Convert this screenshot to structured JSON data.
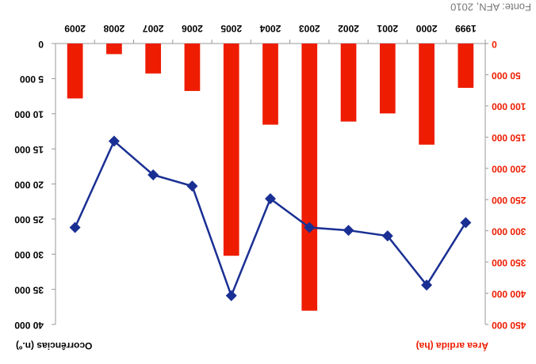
{
  "chart_data": {
    "type": "bar_line",
    "source": "Fonte: AFN, 2010",
    "y_label": "Área ardida (ha)",
    "y2_label": "Ocorrências (n.º)",
    "categories": [
      "1999",
      "2000",
      "2001",
      "2002",
      "2003",
      "2004",
      "2005",
      "2006",
      "2007",
      "2008",
      "2009"
    ],
    "series": [
      {
        "name": "Área ardida (ha)",
        "type": "bar",
        "color": "#ee1c00",
        "axis": "y",
        "values": [
          71000,
          162000,
          112000,
          125000,
          428000,
          130000,
          340000,
          76000,
          48000,
          17000,
          88000
        ]
      },
      {
        "name": "Ocorrências (n.º)",
        "type": "line",
        "color": "#1a2f93",
        "axis": "y2",
        "values": [
          25500,
          34400,
          27400,
          26600,
          26200,
          22100,
          35900,
          20300,
          18700,
          13900,
          26200
        ]
      }
    ],
    "ylim": [
      0,
      450000
    ],
    "yticks": [
      0,
      {
        "value": 50000,
        "label": "50 000"
      },
      {
        "value": 100000,
        "label": "100 000"
      },
      {
        "value": 150000,
        "label": "150 000"
      },
      {
        "value": 200000,
        "label": "200 000"
      },
      {
        "value": 250000,
        "label": "250 000"
      },
      {
        "value": 300000,
        "label": "300 000"
      },
      {
        "value": 350000,
        "label": "350 000"
      },
      {
        "value": 400000,
        "label": "400 000"
      },
      {
        "value": 450000,
        "label": "450 000"
      }
    ],
    "y2lim": [
      0,
      40000
    ],
    "y2ticks": [
      0,
      {
        "value": 5000,
        "label": "5 000"
      },
      {
        "value": 10000,
        "label": "10 000"
      },
      {
        "value": 15000,
        "label": "15 000"
      },
      {
        "value": 20000,
        "label": "20 000"
      },
      {
        "value": 25000,
        "label": "25 000"
      },
      {
        "value": 30000,
        "label": "30 000"
      },
      {
        "value": 35000,
        "label": "35 000"
      },
      {
        "value": 40000,
        "label": "40 000"
      }
    ],
    "rotation": 180
  }
}
